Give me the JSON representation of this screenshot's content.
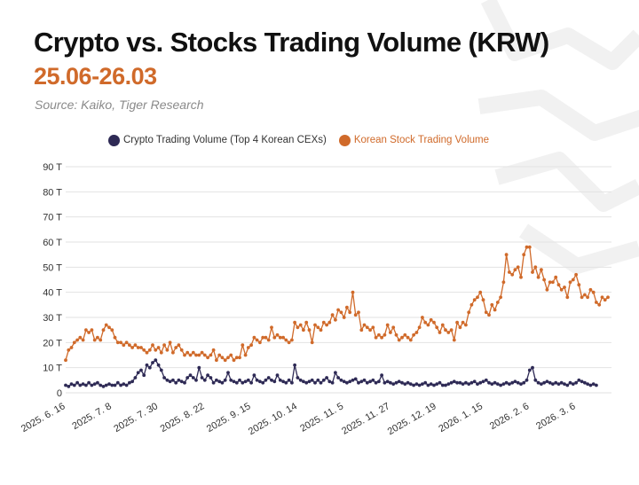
{
  "header": {
    "title": "Crypto vs. Stocks Trading Volume (KRW)",
    "subtitle": "25.06-26.03",
    "source": "Source: Kaiko, Tiger Research"
  },
  "legend": {
    "crypto": "Crypto Trading Volume (Top 4 Korean CEXs)",
    "stock": "Korean Stock Trading Volume"
  },
  "colors": {
    "crypto": "#2e2a55",
    "stock": "#d06a2a",
    "grid": "#e2e2e2",
    "title": "#111111",
    "subtitle": "#d06a2a",
    "watermark": "#f1f1f1"
  },
  "chart_data": {
    "type": "line",
    "title": "Crypto vs. Stocks Trading Volume (KRW)",
    "subtitle": "25.06-26.03",
    "xlabel": "",
    "ylabel": "",
    "grid": true,
    "legend_position": "top-center",
    "ylim": [
      0,
      90
    ],
    "yticks": [
      0,
      10,
      20,
      30,
      40,
      50,
      60,
      70,
      80,
      90
    ],
    "ytick_labels": [
      "0",
      "10 T",
      "20 T",
      "30 T",
      "40 T",
      "50 T",
      "60 T",
      "70 T",
      "80 T",
      "90 T"
    ],
    "xtick_labels": [
      "2025. 6. 16",
      "2025. 7. 8",
      "2025. 7. 30",
      "2025. 8. 22",
      "2025. 9. 15",
      "2025. 10. 14",
      "2025. 11. 5",
      "2025. 11. 27",
      "2025. 12. 19",
      "2026. 1. 15",
      "2026. 2. 6",
      "2026. 3. 6"
    ],
    "xtick_index": [
      0,
      16,
      32,
      48,
      64,
      80,
      96,
      112,
      128,
      144,
      160,
      176
    ],
    "series": [
      {
        "name": "Crypto Trading Volume (Top 4 Korean CEXs)",
        "values": [
          3,
          2.5,
          3.5,
          3,
          4,
          3,
          3.5,
          3,
          4,
          3,
          3.5,
          4,
          3,
          2.5,
          3,
          3.5,
          3,
          3,
          4,
          3,
          3.5,
          3,
          4,
          4.5,
          6,
          8,
          9,
          7,
          11,
          10,
          12,
          13,
          11,
          9,
          6,
          5,
          4.5,
          5,
          4,
          5,
          4.5,
          4,
          6,
          7,
          6,
          5,
          10,
          6,
          5,
          7,
          6,
          4,
          5,
          4.5,
          4,
          5,
          8,
          5,
          4.5,
          4,
          5,
          4,
          4.5,
          5,
          4,
          7,
          5,
          4.5,
          4,
          5,
          6,
          5,
          4.5,
          7,
          5,
          4.5,
          4,
          5,
          4,
          11,
          6,
          5,
          4.5,
          4,
          4.5,
          5,
          4,
          5,
          4,
          5,
          6,
          4.5,
          4,
          8,
          6,
          5,
          4.5,
          4,
          4.5,
          5,
          5.5,
          4,
          4.5,
          5,
          4,
          4.5,
          5,
          4,
          4.5,
          7,
          4,
          4.5,
          4,
          3.5,
          4,
          4.5,
          4,
          3.5,
          4,
          3.5,
          3,
          3.5,
          3,
          3.5,
          4,
          3,
          3.5,
          3,
          3.5,
          4,
          3,
          3,
          3.5,
          4,
          4.5,
          4,
          4,
          3.5,
          4,
          3.5,
          4,
          4.5,
          3.5,
          4,
          4.5,
          5,
          4,
          3.5,
          4,
          3.5,
          3,
          3.5,
          4,
          3.5,
          4,
          4.5,
          4,
          3.5,
          4,
          5,
          9,
          10,
          5,
          4,
          3.5,
          4,
          4.5,
          4,
          3.5,
          4,
          3.5,
          4,
          3.5,
          3,
          4,
          3.5,
          4,
          5,
          4.5,
          4,
          3.5,
          3,
          3.5,
          3
        ]
      },
      {
        "name": "Korean Stock Trading Volume",
        "values": [
          13,
          17,
          18,
          20,
          21,
          22,
          21,
          25,
          24,
          25,
          21,
          22,
          21,
          25,
          27,
          26,
          25,
          22,
          20,
          20,
          19,
          20,
          19,
          18,
          19,
          18,
          18,
          17,
          16,
          17,
          19,
          17,
          18,
          16,
          19,
          17,
          20,
          16,
          18,
          19,
          17,
          15,
          16,
          15,
          16,
          15,
          15,
          16,
          15,
          14,
          15,
          17,
          13,
          15,
          14,
          13,
          14,
          15,
          13,
          14,
          14,
          19,
          15,
          18,
          19,
          22,
          21,
          20,
          22,
          22,
          21,
          26,
          22,
          23,
          22,
          22,
          21,
          20,
          21,
          28,
          26,
          27,
          25,
          28,
          25,
          20,
          27,
          26,
          25,
          28,
          27,
          28,
          31,
          29,
          33,
          32,
          30,
          34,
          32,
          40,
          31,
          32,
          25,
          27,
          26,
          25,
          26,
          22,
          23,
          22,
          23,
          27,
          24,
          26,
          23,
          21,
          22,
          23,
          22,
          21,
          23,
          24,
          26,
          30,
          28,
          27,
          29,
          28,
          26,
          24,
          27,
          25,
          24,
          25,
          21,
          28,
          26,
          28,
          27,
          32,
          35,
          37,
          38,
          40,
          37,
          32,
          31,
          35,
          33,
          36,
          38,
          44,
          55,
          48,
          47,
          49,
          50,
          46,
          55,
          58,
          58,
          48,
          50,
          46,
          49,
          45,
          41,
          44,
          44,
          46,
          43,
          41,
          42,
          38,
          44,
          45,
          47,
          43,
          38,
          39,
          38,
          41,
          40,
          36,
          35,
          38,
          37,
          38
        ]
      }
    ]
  }
}
